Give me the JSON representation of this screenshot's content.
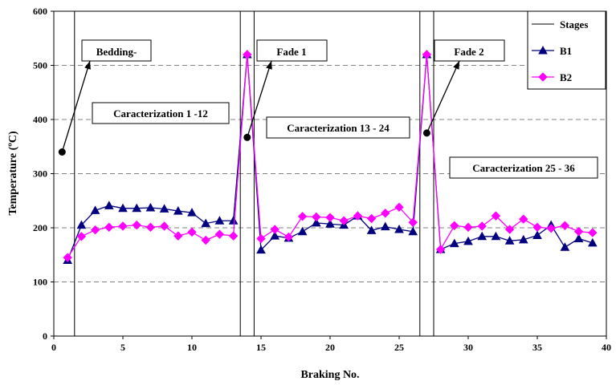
{
  "chart_data": {
    "type": "line",
    "xlabel": "Braking No.",
    "ylabel": "Temperature (ºC)",
    "xlim": [
      0,
      40
    ],
    "ylim": [
      0,
      600
    ],
    "xticks": [
      0,
      5,
      10,
      15,
      20,
      25,
      30,
      35,
      40
    ],
    "yticks": [
      0,
      100,
      200,
      300,
      400,
      500,
      600
    ],
    "grid": "horizontal dashed",
    "legend_position": "top-right",
    "stage_boundaries": [
      1.5,
      13.5,
      14.5,
      26.5,
      27.5
    ],
    "series": [
      {
        "name": "Stages",
        "color": "#000000",
        "marker": "none"
      },
      {
        "name": "B1",
        "color": "#000080",
        "marker": "triangle",
        "x": [
          1,
          2,
          3,
          4,
          5,
          6,
          7,
          8,
          9,
          10,
          11,
          12,
          13,
          14,
          15,
          16,
          17,
          18,
          19,
          20,
          21,
          22,
          23,
          24,
          25,
          26,
          27,
          28,
          29,
          30,
          31,
          32,
          33,
          34,
          35,
          36,
          37,
          38,
          39
        ],
        "values": [
          140,
          205,
          232,
          241,
          236,
          236,
          237,
          235,
          231,
          228,
          208,
          213,
          213,
          520,
          159,
          185,
          181,
          193,
          209,
          207,
          205,
          222,
          195,
          202,
          197,
          193,
          520,
          160,
          171,
          175,
          184,
          184,
          176,
          178,
          186,
          205,
          164,
          180,
          172
        ]
      },
      {
        "name": "B2",
        "color": "#ff00ff",
        "marker": "diamond",
        "x": [
          1,
          2,
          3,
          4,
          5,
          6,
          7,
          8,
          9,
          10,
          11,
          12,
          13,
          14,
          15,
          16,
          17,
          18,
          19,
          20,
          21,
          22,
          23,
          24,
          25,
          26,
          27,
          28,
          29,
          30,
          31,
          32,
          33,
          34,
          35,
          36,
          37,
          38,
          39
        ],
        "values": [
          145,
          184,
          196,
          201,
          203,
          205,
          201,
          203,
          185,
          192,
          177,
          188,
          185,
          520,
          180,
          197,
          183,
          221,
          220,
          219,
          213,
          222,
          217,
          227,
          238,
          210,
          520,
          160,
          204,
          201,
          203,
          222,
          197,
          216,
          201,
          199,
          204,
          193,
          191
        ]
      }
    ],
    "annotations": [
      {
        "text": "Bedding-",
        "pointer": [
          0.6,
          340
        ]
      },
      {
        "text": "Fade 1",
        "pointer": [
          14,
          367
        ]
      },
      {
        "text": "Fade 2",
        "pointer": [
          27,
          375
        ]
      },
      {
        "text": "Caracterization 1 -12"
      },
      {
        "text": "Caracterization 13 - 24"
      },
      {
        "text": "Caracterization 25 - 36"
      }
    ]
  }
}
